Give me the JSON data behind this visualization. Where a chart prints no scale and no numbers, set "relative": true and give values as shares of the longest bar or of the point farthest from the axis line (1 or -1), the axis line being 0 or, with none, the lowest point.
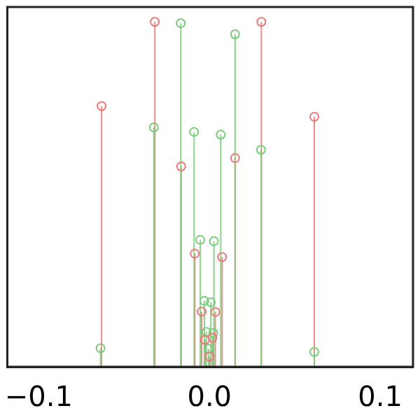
{
  "chart_data": {
    "type": "lollipop",
    "relative": true,
    "marker": "circle",
    "grid": false,
    "xlim": [
      -0.1184,
      0.1192
    ],
    "xticks": [
      {
        "value": -0.1,
        "label": "−0.1"
      },
      {
        "value": 0,
        "label": "0.0"
      },
      0.1
    ],
    "series": [
      {
        "color": "#ee7777",
        "x": [
          -0.0632,
          -0.032,
          -0.0166,
          -0.0086,
          -0.0046,
          -0.0026,
          0.0,
          0.0018,
          0.0034,
          0.0074,
          0.015,
          0.0304,
          0.0614
        ],
        "values": [
          0.756,
          1.0,
          0.581,
          0.328,
          0.16,
          0.078,
          0.03,
          0.084,
          0.159,
          0.318,
          0.605,
          1.0,
          0.725
        ]
      },
      {
        "color": "#77cc77",
        "x": [
          -0.0638,
          -0.0326,
          -0.0168,
          -0.009,
          -0.0054,
          -0.003,
          -0.0018,
          -0.0006,
          0.0008,
          0.0022,
          0.0026,
          0.0066,
          0.015,
          0.0302,
          0.0614
        ],
        "values": [
          0.054,
          0.694,
          0.996,
          0.681,
          0.368,
          0.191,
          0.101,
          0.052,
          0.187,
          0.098,
          0.364,
          0.673,
          0.964,
          0.629,
          0.043
        ]
      }
    ]
  }
}
